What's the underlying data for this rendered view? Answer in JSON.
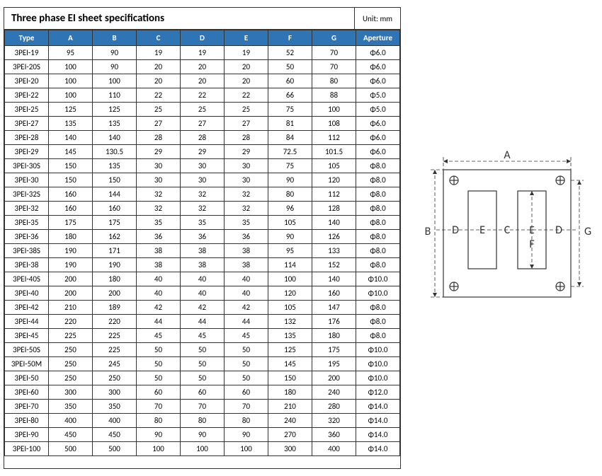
{
  "title": "Three phase EI sheet specifications",
  "unit": "Unit: mm",
  "columns": [
    "Type",
    "A",
    "B",
    "C",
    "D",
    "E",
    "F",
    "G",
    "Aperture"
  ],
  "rows": [
    [
      "3PEI-19",
      "95",
      "90",
      "19",
      "19",
      "19",
      "52",
      "70",
      "Φ6.0"
    ],
    [
      "3PEI-20S",
      "100",
      "90",
      "20",
      "20",
      "20",
      "50",
      "70",
      "Φ6.0"
    ],
    [
      "3PEI-20",
      "100",
      "100",
      "20",
      "20",
      "20",
      "60",
      "80",
      "Φ6.0"
    ],
    [
      "3PEI-22",
      "100",
      "110",
      "22",
      "22",
      "22",
      "66",
      "88",
      "Φ5.0"
    ],
    [
      "3PEI-25",
      "125",
      "125",
      "25",
      "25",
      "25",
      "75",
      "100",
      "Φ5.0"
    ],
    [
      "3PEI-27",
      "135",
      "135",
      "27",
      "27",
      "27",
      "81",
      "108",
      "Φ6.0"
    ],
    [
      "3PEI-28",
      "140",
      "140",
      "28",
      "28",
      "28",
      "84",
      "112",
      "Φ6.0"
    ],
    [
      "3PEI-29",
      "145",
      "130.5",
      "29",
      "29",
      "29",
      "72.5",
      "101.5",
      "Φ6.0"
    ],
    [
      "3PEI-30S",
      "150",
      "135",
      "30",
      "30",
      "30",
      "75",
      "105",
      "Φ8.0"
    ],
    [
      "3PEI-30",
      "150",
      "150",
      "30",
      "30",
      "30",
      "90",
      "120",
      "Φ8.0"
    ],
    [
      "3PEI-32S",
      "160",
      "144",
      "32",
      "32",
      "32",
      "80",
      "112",
      "Φ8.0"
    ],
    [
      "3PEI-32",
      "160",
      "160",
      "32",
      "32",
      "32",
      "96",
      "128",
      "Φ8.0"
    ],
    [
      "3PEI-35",
      "175",
      "175",
      "35",
      "35",
      "35",
      "105",
      "140",
      "Φ8.0"
    ],
    [
      "3PEI-36",
      "180",
      "162",
      "36",
      "36",
      "36",
      "90",
      "126",
      "Φ8.0"
    ],
    [
      "3PEI-38S",
      "190",
      "171",
      "38",
      "38",
      "38",
      "95",
      "133",
      "Φ8.0"
    ],
    [
      "3PEI-38",
      "190",
      "190",
      "38",
      "38",
      "38",
      "114",
      "152",
      "Φ8.0"
    ],
    [
      "3PEI-40S",
      "200",
      "180",
      "40",
      "40",
      "40",
      "100",
      "140",
      "Φ10.0"
    ],
    [
      "3PEI-40",
      "200",
      "200",
      "40",
      "40",
      "40",
      "120",
      "160",
      "Φ10.0"
    ],
    [
      "3PEI-42",
      "210",
      "189",
      "42",
      "42",
      "42",
      "105",
      "147",
      "Φ8.0"
    ],
    [
      "3PEI-44",
      "220",
      "220",
      "44",
      "44",
      "44",
      "132",
      "176",
      "Φ8.0"
    ],
    [
      "3PEI-45",
      "225",
      "225",
      "45",
      "45",
      "45",
      "135",
      "180",
      "Φ8.0"
    ],
    [
      "3PEI-50S",
      "250",
      "225",
      "50",
      "50",
      "50",
      "125",
      "175",
      "Φ10.0"
    ],
    [
      "3PEI-50M",
      "250",
      "245",
      "50",
      "50",
      "50",
      "145",
      "195",
      "Φ10.0"
    ],
    [
      "3PEI-50",
      "250",
      "250",
      "50",
      "50",
      "50",
      "150",
      "200",
      "Φ10.0"
    ],
    [
      "3PEI-60",
      "300",
      "300",
      "60",
      "60",
      "60",
      "180",
      "240",
      "Φ12.0"
    ],
    [
      "3PEI-70",
      "350",
      "350",
      "70",
      "70",
      "70",
      "210",
      "280",
      "Φ14.0"
    ],
    [
      "3PEI-80",
      "400",
      "400",
      "80",
      "80",
      "80",
      "240",
      "320",
      "Φ14.0"
    ],
    [
      "3PEI-90",
      "450",
      "450",
      "90",
      "90",
      "90",
      "270",
      "360",
      "Φ14.0"
    ],
    [
      "3PEI-100",
      "500",
      "500",
      "100",
      "100",
      "100",
      "300",
      "400",
      "Φ14.0"
    ]
  ],
  "header_bg": "#2f75b5",
  "diagram": {
    "labels": {
      "A": "A",
      "B": "B",
      "C": "C",
      "D": "D",
      "E": "E",
      "F": "F",
      "G": "G"
    }
  }
}
